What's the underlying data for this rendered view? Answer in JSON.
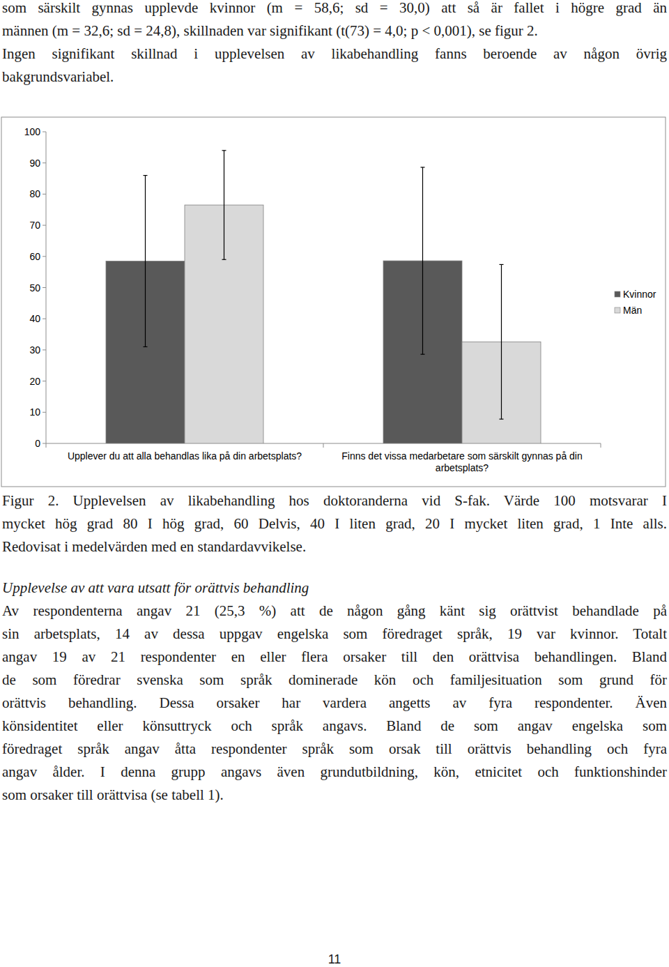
{
  "paragraphs": [
    [
      "som särskilt gynnas upplevde kvinnor (m = 58,6; sd = 30,0) att så är fallet i högre grad än",
      "männen (m = 32,6; sd = 24,8), skillnaden var signifikant (t(73) = 4,0; p < 0,001), se figur 2."
    ],
    [
      "Ingen signifikant skillnad i upplevelsen av likabehandling fanns beroende av någon övrig",
      "bakgrundsvariabel."
    ]
  ],
  "chart_data": {
    "type": "bar",
    "categories": [
      "Upplever du att alla behandlas lika på din arbetsplats?",
      "Finns det vissa medarbetare som särskilt gynnas på din arbetsplats?"
    ],
    "series": [
      {
        "name": "Kvinnor",
        "color": "#595959",
        "values": [
          58.5,
          58.6
        ],
        "errors": [
          27.5,
          30.0
        ]
      },
      {
        "name": "Män",
        "color": "#d9d9d9",
        "values": [
          76.5,
          32.6
        ],
        "errors": [
          17.5,
          24.8
        ]
      }
    ],
    "ylim": [
      0,
      100
    ],
    "yticks": [
      0,
      10,
      20,
      30,
      40,
      50,
      60,
      70,
      80,
      90,
      100
    ],
    "grid": false,
    "legend": "right"
  },
  "caption": [
    "Figur 2. Upplevelsen av likabehandling hos doktoranderna vid S-fak. Värde 100 motsvarar I",
    "mycket hög grad 80 I hög grad, 60 Delvis, 40 I liten grad, 20 I mycket liten grad, 1 Inte alls.",
    "Redovisat i medelvärden med en standardavvikelse."
  ],
  "section": {
    "heading": "Upplevelse av att vara utsatt för orättvis behandling",
    "lines": [
      "Av respondenterna angav 21 (25,3 %) att de någon gång känt sig orättvist behandlade på",
      "sin arbetsplats, 14 av dessa uppgav engelska som föredraget språk, 19 var kvinnor. Totalt",
      "angav 19 av 21 respondenter en eller flera orsaker till den orättvisa behandlingen. Bland",
      "de som föredrar svenska som språk dominerade kön och familjesituation som grund för",
      "orättvis behandling. Dessa orsaker har vardera angetts av fyra respondenter. Även",
      "könsidentitet eller könsuttryck och språk angavs. Bland de som angav engelska som",
      "föredraget språk angav åtta respondenter språk som orsak till orättvis behandling och fyra",
      "angav ålder. I denna grupp angavs även grundutbildning, kön, etnicitet och funktionshinder",
      "som orsaker till orättvisa (se tabell 1)."
    ]
  },
  "page_number": "11"
}
